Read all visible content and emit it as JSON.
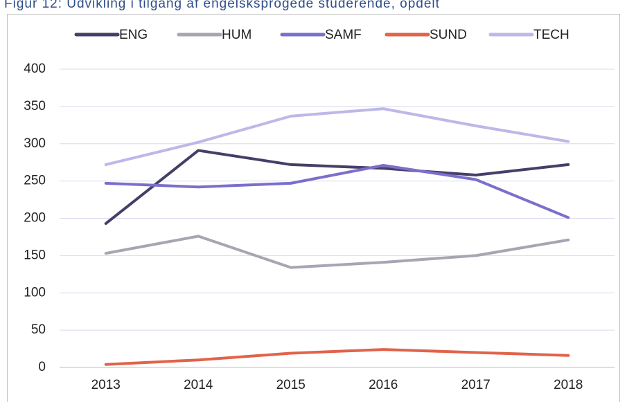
{
  "chart_data": {
    "type": "line",
    "title": "Figur 12: Udvikling i tilgang af engelsksprogede studerende, opdelt",
    "categories": [
      "2013",
      "2014",
      "2015",
      "2016",
      "2017",
      "2018"
    ],
    "series": [
      {
        "name": "ENG",
        "color": "#453f68",
        "values": [
          193,
          291,
          272,
          267,
          258,
          272
        ]
      },
      {
        "name": "HUM",
        "color": "#a8a5b3",
        "values": [
          153,
          176,
          134,
          141,
          150,
          171
        ]
      },
      {
        "name": "SAMF",
        "color": "#7a6fcc",
        "values": [
          247,
          242,
          247,
          271,
          252,
          201
        ]
      },
      {
        "name": "SUND",
        "color": "#e0634a",
        "values": [
          4,
          10,
          19,
          24,
          20,
          16
        ]
      },
      {
        "name": "TECH",
        "color": "#bcb8e8",
        "values": [
          272,
          302,
          337,
          347,
          324,
          303
        ]
      }
    ],
    "ylim": [
      0,
      400
    ],
    "yticks": [
      0,
      50,
      100,
      150,
      200,
      250,
      300,
      350,
      400
    ],
    "grid": true,
    "legend": "top"
  }
}
